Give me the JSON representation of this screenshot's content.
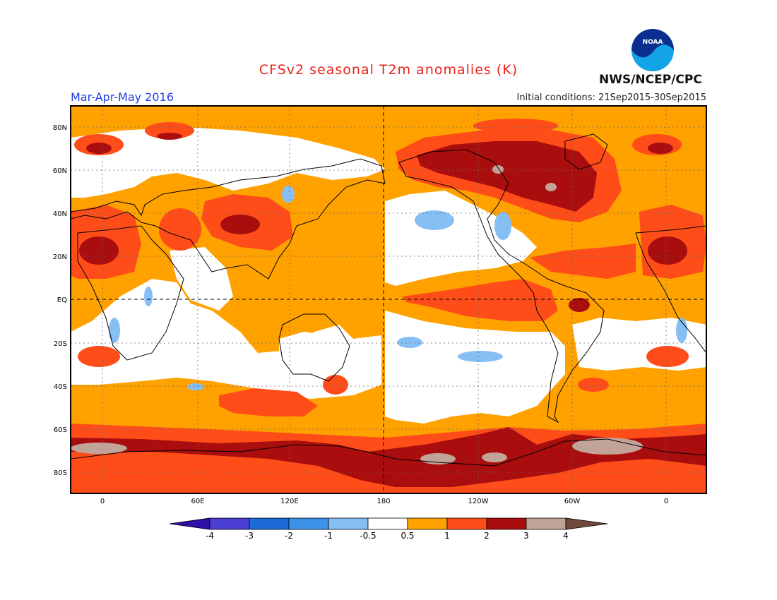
{
  "header": {
    "title": "CFSv2 seasonal T2m anomalies (K)",
    "period": "Mar-Apr-May 2016",
    "initial_conditions": "Initial conditions: 21Sep2015-30Sep2015",
    "agency": "NWS/NCEP/CPC",
    "logo_text": "NOAA"
  },
  "colors": {
    "title": "#e8231a",
    "period": "#2040e8",
    "scale": [
      "#2e0fa8",
      "#4a3ed4",
      "#1c6ad6",
      "#3f92ea",
      "#86bff4",
      "#ffffff",
      "#ffa200",
      "#ff4d1a",
      "#a90d0d",
      "#c2a397",
      "#6e4a3c"
    ]
  },
  "map": {
    "lat_labels": [
      "80N",
      "60N",
      "40N",
      "20N",
      "EQ",
      "20S",
      "40S",
      "60S",
      "80S"
    ],
    "lon_labels": [
      "0",
      "60E",
      "120E",
      "180",
      "120W",
      "60W",
      "0"
    ]
  },
  "legend": {
    "tick_labels": [
      "-4",
      "-3",
      "-2",
      "-1",
      "-0.5",
      "0.5",
      "1",
      "2",
      "3",
      "4"
    ]
  }
}
